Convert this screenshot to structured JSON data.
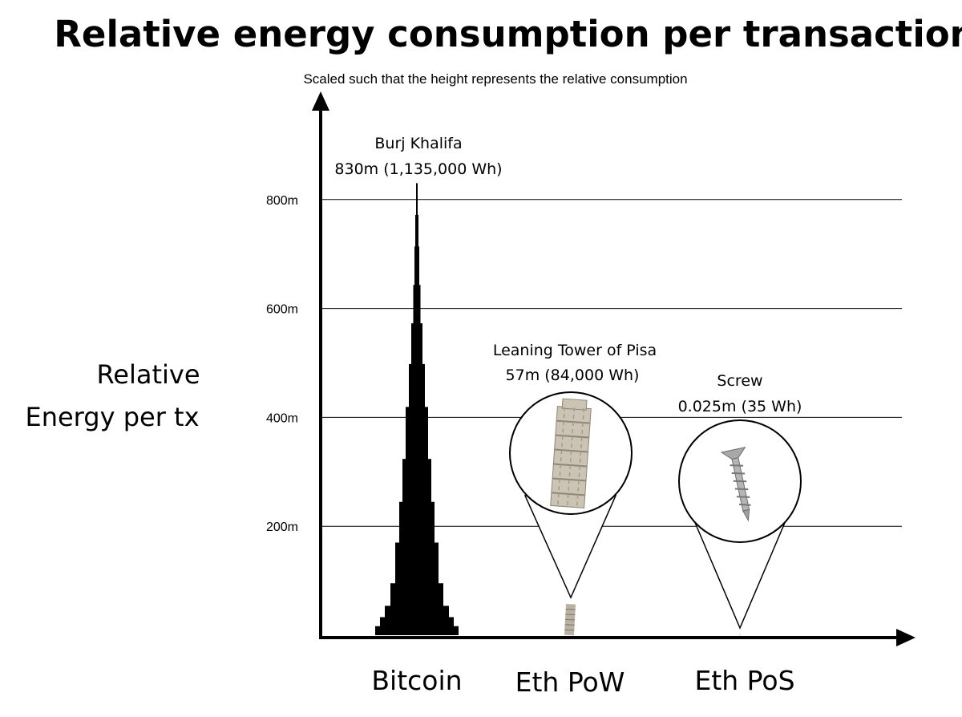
{
  "chart_data": {
    "type": "bar",
    "title": "Relative energy consumption per transaction",
    "subtitle": "Scaled such that the height represents the relative consumption",
    "ylabel_lines": [
      "Relative",
      "Energy per tx"
    ],
    "xlabel": "",
    "categories": [
      "Bitcoin",
      "Eth PoW",
      "Eth PoS"
    ],
    "values": [
      830,
      57,
      0.025
    ],
    "value_unit": "m",
    "energy_wh": [
      1135000,
      84000,
      35
    ],
    "ylim": [
      0,
      1000
    ],
    "yticks": [
      200,
      400,
      600,
      800
    ],
    "ytick_labels": [
      "200m",
      "400m",
      "600m",
      "800m"
    ],
    "grid": true,
    "annotations": [
      {
        "category": "Bitcoin",
        "object": "Burj Khalifa",
        "text_lines": [
          "Burj Khalifa",
          "830m (1,135,000 Wh)"
        ]
      },
      {
        "category": "Eth PoW",
        "object": "Leaning Tower of Pisa",
        "text_lines": [
          "Leaning Tower of Pisa",
          "57m (84,000 Wh)"
        ]
      },
      {
        "category": "Eth PoS",
        "object": "Screw",
        "text_lines": [
          "Screw",
          "0.025m (35 Wh)"
        ]
      }
    ],
    "marks": [
      {
        "category": "Bitcoin",
        "icon": "burj-khalifa-silhouette",
        "color": "#000000"
      },
      {
        "category": "Eth PoW",
        "icon": "leaning-tower-icon",
        "color": "#b9b2a4"
      },
      {
        "category": "Eth PoS",
        "icon": "screw-icon",
        "color": "#9a9a9a"
      }
    ]
  }
}
